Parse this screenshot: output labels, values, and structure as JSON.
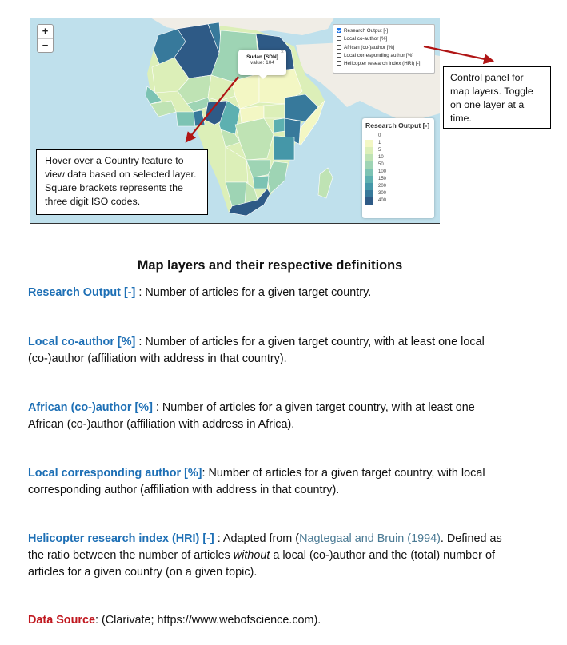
{
  "map": {
    "zoom_in": "+",
    "zoom_out": "−",
    "layers": [
      {
        "label": "Research Output [-]",
        "checked": true
      },
      {
        "label": "Local co-author [%]",
        "checked": false
      },
      {
        "label": "African (co-)author [%]",
        "checked": false
      },
      {
        "label": "Local corresponding author [%]",
        "checked": false
      },
      {
        "label": "Helicopter research index (HRI) [-]",
        "checked": false
      }
    ],
    "popup": {
      "title": "Sudan [SDN]",
      "value": "value: 104",
      "close": "×"
    },
    "legend": {
      "title": "Research Output [-]",
      "items": [
        {
          "label": "0",
          "color": "#ffffff"
        },
        {
          "label": "1",
          "color": "#f3f7c4"
        },
        {
          "label": "5",
          "color": "#dcefb8"
        },
        {
          "label": "10",
          "color": "#bfe3b4"
        },
        {
          "label": "50",
          "color": "#9ed4b4"
        },
        {
          "label": "100",
          "color": "#7cc3b3"
        },
        {
          "label": "150",
          "color": "#5db0b0"
        },
        {
          "label": "200",
          "color": "#4597a8"
        },
        {
          "label": "300",
          "color": "#37799b"
        },
        {
          "label": "400",
          "color": "#2e5a86"
        }
      ]
    },
    "colors": {
      "sea": "#bfe0ec",
      "outside_land": "#f0ede6",
      "arrow": "#b01515"
    }
  },
  "callouts": {
    "right": "Control panel for map layers. Toggle on one layer at a time.",
    "left": "Hover over a Country feature to view data based on selected layer. Square brackets represents the three digit ISO codes."
  },
  "definitions": {
    "heading": "Map layers and their respective definitions",
    "research_output": {
      "term": "Research Output [-]",
      "text": " : Number of articles for a given target country."
    },
    "local_coauthor": {
      "term": "Local co-author [%]",
      "text": " : Number of articles for a given target country, with at least one local (co-)author (affiliation with address in that country)."
    },
    "african_coauthor": {
      "term": "African (co-)author [%]",
      "text": " : Number of articles for a given target country, with at least one African (co-)author (affiliation with address in Africa)."
    },
    "local_corresponding": {
      "term": "Local corresponding author [%]",
      "text": ": Number of articles for a given target country, with local corresponding author (affiliation with address in that country)."
    },
    "hri": {
      "term": "Helicopter research index (HRI) [-]",
      "text_before": " : Adapted from (",
      "ref": "Nagtegaal and Bruin (1994)",
      "text_mid": ". Defined as the ratio between the number of articles ",
      "emph": "without",
      "text_after": " a local (co-)author and the (total) number of articles for a given country (on a given topic)."
    },
    "data_source": {
      "term": "Data Source",
      "text": ": (Clarivate; https://www.webofscience.com)."
    }
  }
}
